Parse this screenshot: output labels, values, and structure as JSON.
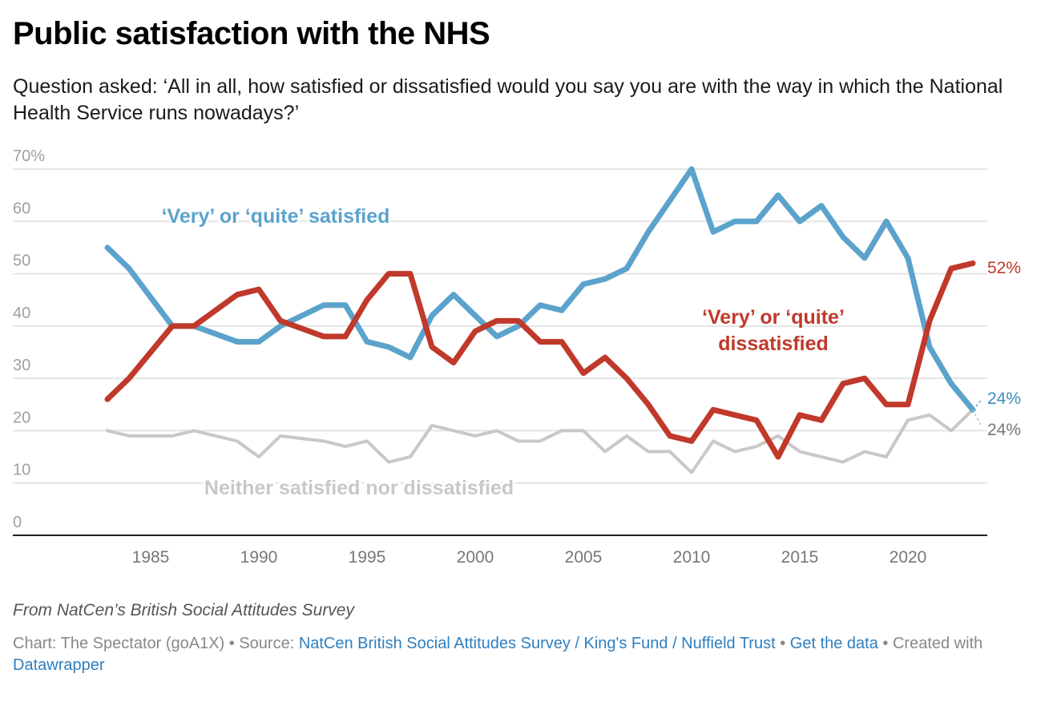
{
  "header": {
    "title": "Public satisfaction with the NHS",
    "subtitle": "Question asked: ‘All in all, how satisfied or dissatisfied would you say you are with the way in which the National Health Service runs nowadays?’"
  },
  "footer": {
    "notes": "From NatCen’s British Social Attitudes Survey",
    "chart_prefix": "Chart: The Spectator (goA1X) • Source: ",
    "source_link": "NatCen British Social Attitudes Survey / King's Fund / Nuffield Trust",
    "sep": " • ",
    "get_data": "Get the data",
    "created": " • Created with ",
    "datawrapper": "Datawrapper"
  },
  "chart_data": {
    "type": "line",
    "title": "Public satisfaction with the NHS",
    "xlabel": "",
    "ylabel": "",
    "ylim": [
      0,
      70
    ],
    "xlim": [
      1979,
      2024.7
    ],
    "yticks": [
      0,
      10,
      20,
      30,
      40,
      50,
      60,
      70
    ],
    "ytick_labels": [
      "0",
      "10",
      "20",
      "30",
      "40",
      "50",
      "60",
      "70%"
    ],
    "xticks": [
      1985,
      1990,
      1995,
      2000,
      2005,
      2010,
      2015,
      2020
    ],
    "xtick_labels": [
      "1985",
      "1990",
      "1995",
      "2000",
      "2005",
      "2010",
      "2015",
      "2020"
    ],
    "grid": true,
    "x": [
      1983,
      1984,
      1986,
      1987,
      1989,
      1990,
      1991,
      1993,
      1994,
      1995,
      1996,
      1997,
      1998,
      1999,
      2000,
      2001,
      2002,
      2003,
      2004,
      2005,
      2006,
      2007,
      2008,
      2009,
      2010,
      2011,
      2012,
      2013,
      2014,
      2015,
      2016,
      2017,
      2018,
      2019,
      2020,
      2021,
      2022,
      2023
    ],
    "series": [
      {
        "name": "Neither satisfied nor dissatisfied",
        "label": "Neither satisfied nor dissatisfied",
        "color": "#c8c8c8",
        "end_label": "24%",
        "end_label_color": "#777777",
        "values": [
          20,
          19,
          19,
          20,
          18,
          15,
          19,
          18,
          17,
          18,
          14,
          15,
          21,
          20,
          19,
          20,
          18,
          18,
          20,
          20,
          16,
          19,
          16,
          16,
          12,
          18,
          16,
          17,
          19,
          16,
          15,
          14,
          16,
          15,
          22,
          23,
          20,
          24
        ]
      },
      {
        "name": "‘Very’ or ‘quite’ satisfied",
        "label": "‘Very’ or ‘quite’ satisfied",
        "color": "#5ba3cc",
        "end_label": "24%",
        "end_label_color": "#3a8bbf",
        "values": [
          55,
          51,
          40,
          40,
          37,
          37,
          40,
          44,
          44,
          37,
          36,
          34,
          42,
          46,
          42,
          38,
          40,
          44,
          43,
          48,
          49,
          51,
          58,
          64,
          70,
          58,
          60,
          60,
          65,
          60,
          63,
          57,
          53,
          60,
          53,
          36,
          29,
          24
        ]
      },
      {
        "name": "‘Very’ or ‘quite’ dissatisfied",
        "label": [
          "‘Very’ or ‘quite’",
          "dissatisfied"
        ],
        "color": "#c0392b",
        "end_label": "52%",
        "end_label_color": "#c0392b",
        "values": [
          26,
          30,
          40,
          40,
          46,
          47,
          41,
          38,
          38,
          45,
          50,
          50,
          36,
          33,
          39,
          41,
          41,
          37,
          37,
          31,
          34,
          30,
          25,
          19,
          18,
          24,
          23,
          22,
          15,
          23,
          22,
          29,
          30,
          25,
          25,
          41,
          51,
          52
        ]
      }
    ]
  }
}
